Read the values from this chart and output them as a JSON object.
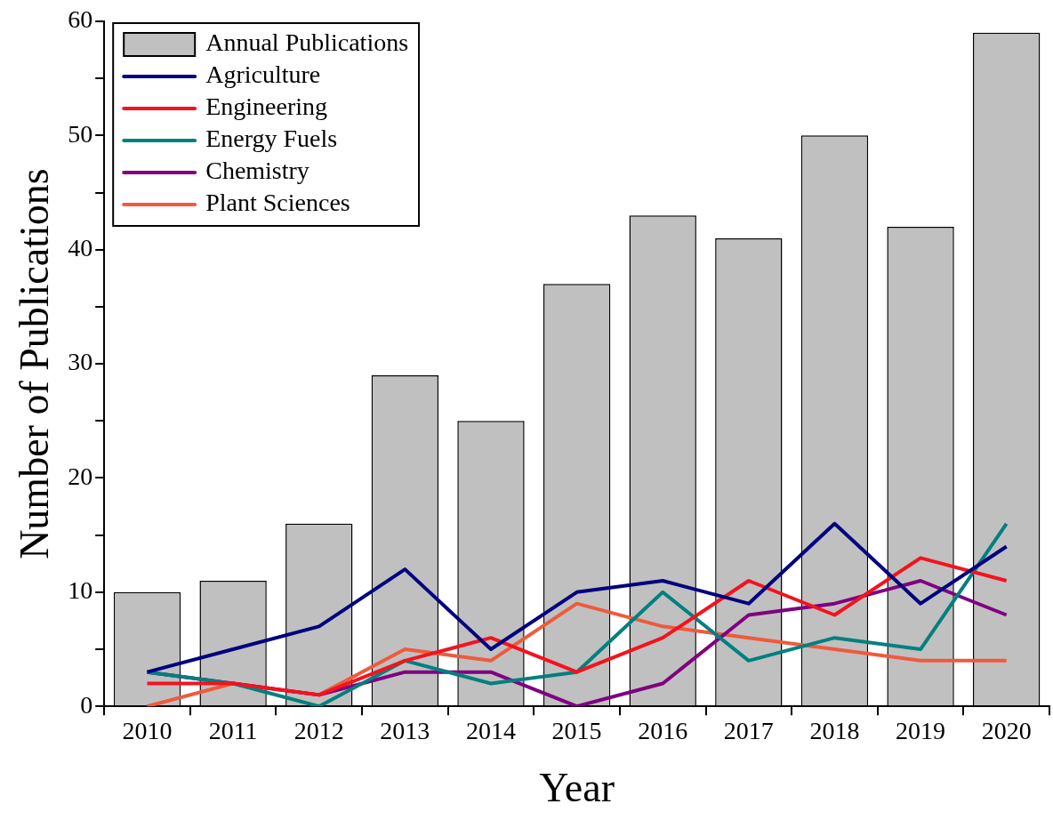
{
  "chart_data": {
    "type": "bar",
    "xlabel": "Year",
    "ylabel": "Number of Publications",
    "categories": [
      "2010",
      "2011",
      "2012",
      "2013",
      "2014",
      "2015",
      "2016",
      "2017",
      "2018",
      "2019",
      "2020"
    ],
    "series": [
      {
        "name": "Annual Publications",
        "color": "#c0c0c0",
        "values": [
          10,
          11,
          16,
          29,
          25,
          37,
          43,
          41,
          50,
          42,
          59
        ]
      },
      {
        "name": "Agriculture",
        "type": "line",
        "color": "#000080",
        "values": [
          3,
          5,
          7,
          12,
          5,
          10,
          11,
          9,
          16,
          9,
          14
        ]
      },
      {
        "name": "Engineering",
        "type": "line",
        "color": "#f5121e",
        "values": [
          2,
          2,
          1,
          4,
          6,
          3,
          6,
          11,
          8,
          13,
          11
        ]
      },
      {
        "name": "Energy Fuels",
        "type": "line",
        "color": "#00807f",
        "values": [
          3,
          2,
          0,
          4,
          2,
          3,
          10,
          4,
          6,
          5,
          16
        ]
      },
      {
        "name": "Chemistry",
        "type": "line",
        "color": "#800080",
        "values": [
          3,
          2,
          1,
          3,
          3,
          0,
          2,
          8,
          9,
          11,
          8
        ]
      },
      {
        "name": "Plant Sciences",
        "type": "line",
        "color": "#ef5a3d",
        "values": [
          0,
          2,
          1,
          5,
          4,
          9,
          7,
          6,
          5,
          4,
          4
        ]
      }
    ],
    "ylim": [
      0,
      60
    ],
    "yticks": [
      0,
      {
        "value": 5,
        "label": null
      },
      10,
      {
        "value": 15,
        "label": null
      },
      20,
      {
        "value": 25,
        "label": null
      },
      30,
      {
        "value": 35,
        "label": null
      },
      40,
      {
        "value": 45,
        "label": null
      },
      50,
      {
        "value": 55,
        "label": null
      },
      60
    ],
    "grid": false,
    "legend": "top left",
    "marker": "none"
  }
}
